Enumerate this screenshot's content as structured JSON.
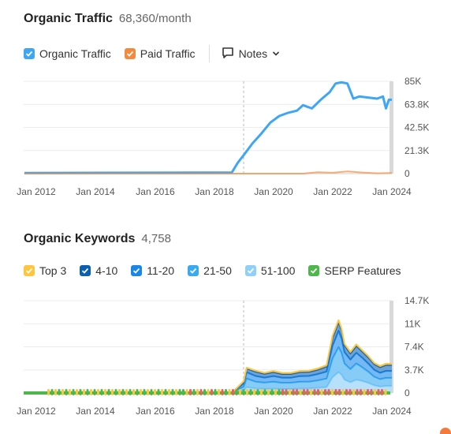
{
  "traffic": {
    "title": "Organic Traffic",
    "value": "68,360/month",
    "legend": [
      {
        "label": "Organic Traffic",
        "color": "#3ea6f5"
      },
      {
        "label": "Paid Traffic",
        "color": "#f48a3e"
      }
    ],
    "notes_label": "Notes"
  },
  "keywords": {
    "title": "Organic Keywords",
    "value": "4,758",
    "legend": [
      {
        "label": "Top 3",
        "color": "#ffc53d"
      },
      {
        "label": "4-10",
        "color": "#0a5fb4"
      },
      {
        "label": "11-20",
        "color": "#1a86e8"
      },
      {
        "label": "21-50",
        "color": "#39aaf2"
      },
      {
        "label": "51-100",
        "color": "#8fd0f8"
      },
      {
        "label": "SERP Features",
        "color": "#4db84a"
      }
    ]
  },
  "chart_data": [
    {
      "type": "line",
      "x_ticks": [
        "Jan 2012",
        "Jan 2014",
        "Jan 2016",
        "Jan 2018",
        "Jan 2020",
        "Jan 2022",
        "Jan 2024"
      ],
      "y_ticks": [
        "85K",
        "63.8K",
        "42.5K",
        "21.3K",
        "0"
      ],
      "ylim": [
        0,
        85000
      ],
      "xlim": [
        2011.6,
        2024.2
      ],
      "grid": true,
      "series": [
        {
          "name": "Organic Traffic",
          "color": "#3ea6f5",
          "x": [
            2011.6,
            2018.6,
            2018.8,
            2019.0,
            2019.3,
            2019.6,
            2019.9,
            2020.2,
            2020.5,
            2020.8,
            2021.0,
            2021.3,
            2021.6,
            2021.9,
            2022.1,
            2022.3,
            2022.5,
            2022.7,
            2022.9,
            2023.2,
            2023.5,
            2023.7,
            2023.8,
            2023.9,
            2024.0
          ],
          "y": [
            500,
            1000,
            10000,
            17000,
            28000,
            37000,
            47000,
            53000,
            56000,
            58000,
            63000,
            60000,
            68000,
            75000,
            83000,
            84000,
            83000,
            69000,
            71000,
            70000,
            69000,
            71000,
            60000,
            68000,
            68000
          ]
        },
        {
          "name": "Paid Traffic",
          "color": "#f48a3e",
          "x": [
            2011.6,
            2021.0,
            2021.5,
            2022.0,
            2022.5,
            2023.0,
            2023.5,
            2024.0
          ],
          "y": [
            0,
            0,
            1200,
            800,
            2000,
            1000,
            300,
            600
          ]
        }
      ]
    },
    {
      "type": "area",
      "x_ticks": [
        "Jan 2012",
        "Jan 2014",
        "Jan 2016",
        "Jan 2018",
        "Jan 2020",
        "Jan 2022",
        "Jan 2024"
      ],
      "y_ticks": [
        "14.7K",
        "11K",
        "7.4K",
        "3.7K",
        "0"
      ],
      "ylim": [
        0,
        14700
      ],
      "xlim": [
        2011.6,
        2024.2
      ],
      "grid": true,
      "stacked": true,
      "x": [
        2011.6,
        2018.6,
        2019.0,
        2019.1,
        2019.4,
        2019.7,
        2020.0,
        2020.3,
        2020.6,
        2020.9,
        2021.2,
        2021.5,
        2021.8,
        2022.0,
        2022.2,
        2022.3,
        2022.4,
        2022.6,
        2022.8,
        2023.0,
        2023.2,
        2023.4,
        2023.6,
        2023.8,
        2024.0
      ],
      "series": [
        {
          "name": "Top 3",
          "color": "#ffc53d",
          "values": [
            0,
            0,
            80,
            120,
            150,
            160,
            170,
            180,
            170,
            170,
            180,
            200,
            230,
            320,
            300,
            260,
            230,
            230,
            240,
            210,
            200,
            190,
            200,
            210,
            210
          ]
        },
        {
          "name": "4-10",
          "color": "#0a5fb4",
          "values": [
            0,
            0,
            300,
            600,
            700,
            600,
            650,
            600,
            600,
            650,
            650,
            700,
            800,
            1300,
            1400,
            1300,
            1100,
            1000,
            1100,
            1000,
            1000,
            900,
            900,
            950,
            950
          ]
        },
        {
          "name": "11-20",
          "color": "#1a86e8",
          "values": [
            0,
            0,
            500,
            1000,
            900,
            800,
            900,
            800,
            800,
            900,
            900,
            1000,
            1100,
            2000,
            2600,
            2300,
            1800,
            1500,
            1700,
            1500,
            1300,
            1100,
            1000,
            1100,
            1100
          ]
        },
        {
          "name": "21-50",
          "color": "#39aaf2",
          "values": [
            0,
            0,
            600,
            1400,
            1100,
            1000,
            1100,
            1000,
            1000,
            1100,
            1100,
            1200,
            1400,
            3000,
            4000,
            3500,
            2600,
            2100,
            2600,
            2200,
            1800,
            1400,
            1200,
            1300,
            1300
          ]
        },
        {
          "name": "51-100",
          "color": "#8fd0f8",
          "values": [
            0,
            0,
            400,
            900,
            700,
            640,
            680,
            620,
            630,
            680,
            700,
            800,
            900,
            2500,
            3300,
            2900,
            2100,
            1700,
            2100,
            1900,
            1600,
            1200,
            1000,
            1100,
            1100
          ]
        }
      ]
    }
  ]
}
